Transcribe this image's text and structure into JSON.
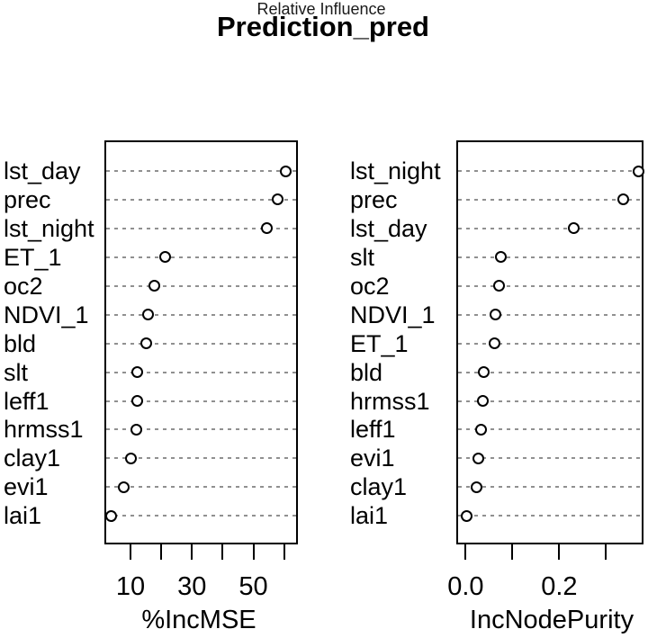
{
  "title": "Prediction_pred",
  "subtitle": "Relative Influence",
  "colors": {
    "foreground": "#000000",
    "background": "#ffffff",
    "gridline": "#909090"
  },
  "chart_data": [
    {
      "type": "scatter",
      "subtype": "dotchart",
      "title": "",
      "xlabel": "%IncMSE",
      "ylabel": "",
      "xlim": [
        1.5,
        64.5
      ],
      "grid": true,
      "legend": "none",
      "xticks": [
        10,
        20,
        30,
        40,
        50,
        60
      ],
      "xtick_labels": [
        "10",
        "",
        "30",
        "",
        "50",
        ""
      ],
      "categories": [
        "lst_day",
        "prec",
        "lst_night",
        "ET_1",
        "oc2",
        "NDVI_1",
        "bld",
        "slt",
        "leff1",
        "hrmss1",
        "clay1",
        "evi1",
        "lai1"
      ],
      "values": [
        60.5,
        58.0,
        54.3,
        21.2,
        17.8,
        15.6,
        15.2,
        12.3,
        12.1,
        11.8,
        10.0,
        7.7,
        3.8
      ]
    },
    {
      "type": "scatter",
      "subtype": "dotchart",
      "title": "",
      "xlabel": "IncNodePurity",
      "ylabel": "",
      "xlim": [
        -0.02,
        0.38
      ],
      "grid": true,
      "legend": "none",
      "xticks": [
        0.0,
        0.1,
        0.2,
        0.3
      ],
      "xtick_labels": [
        "0.0",
        "",
        "0.2",
        ""
      ],
      "categories": [
        "lst_night",
        "prec",
        "lst_day",
        "slt",
        "oc2",
        "NDVI_1",
        "ET_1",
        "bld",
        "hrmss1",
        "leff1",
        "evi1",
        "clay1",
        "lai1"
      ],
      "values": [
        0.369,
        0.336,
        0.23,
        0.075,
        0.071,
        0.064,
        0.062,
        0.038,
        0.036,
        0.033,
        0.027,
        0.024,
        0.003
      ]
    }
  ]
}
